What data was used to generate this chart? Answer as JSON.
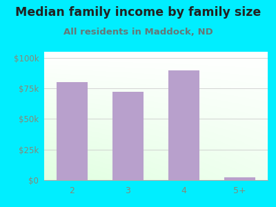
{
  "title": "Median family income by family size",
  "subtitle": "All residents in Maddock, ND",
  "categories": [
    "2",
    "3",
    "4",
    "5+"
  ],
  "values": [
    80000,
    72000,
    90000,
    2000
  ],
  "bar_color": "#b8a0cc",
  "background_color": "#00eeff",
  "yticks": [
    0,
    25000,
    50000,
    75000,
    100000
  ],
  "ytick_labels": [
    "$0",
    "$25k",
    "$50k",
    "$75k",
    "$100k"
  ],
  "ylim": [
    0,
    105000
  ],
  "title_fontsize": 12.5,
  "subtitle_fontsize": 9.5,
  "tick_color": "#888877",
  "title_color": "#222222",
  "subtitle_color": "#667777"
}
